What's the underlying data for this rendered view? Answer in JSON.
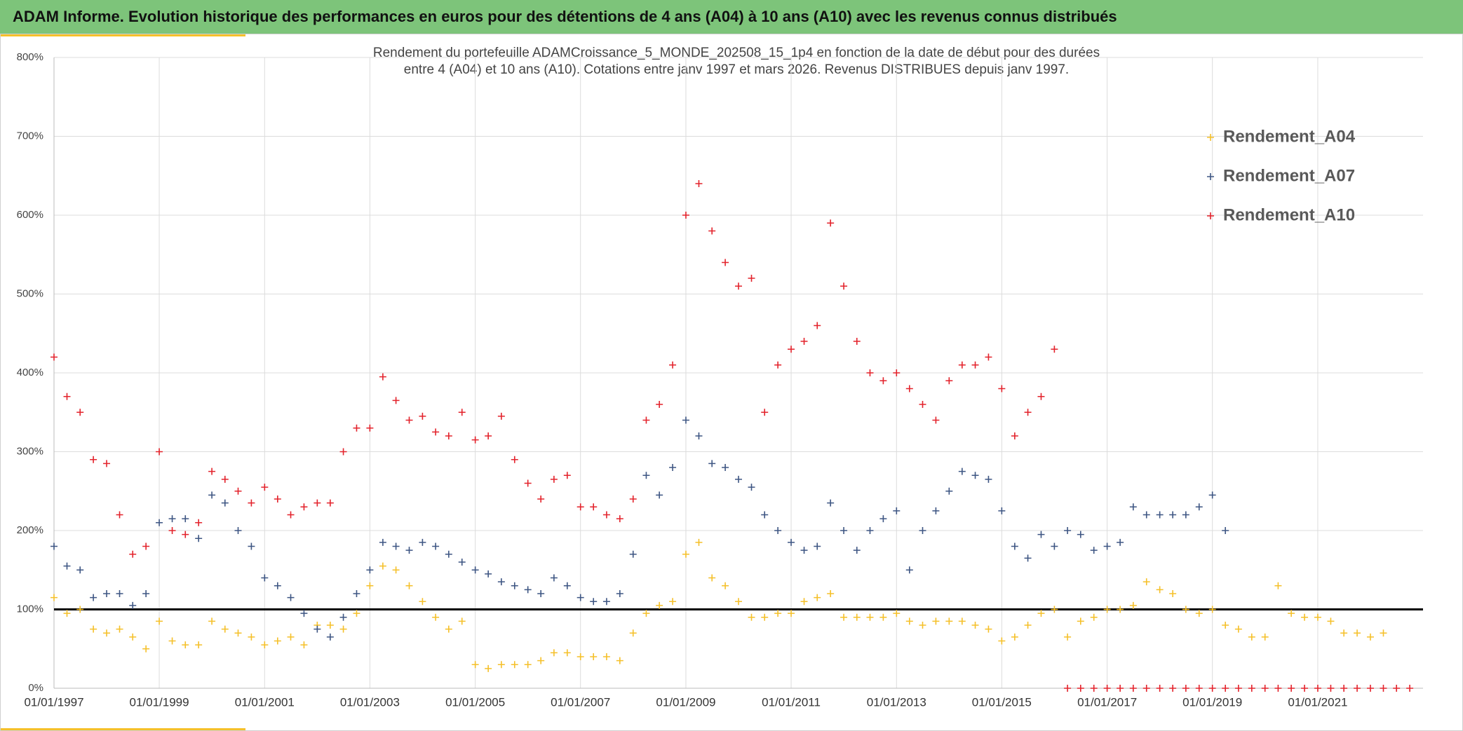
{
  "chart_data": {
    "type": "scatter",
    "title": "ADAM Informe. Evolution historique des performances en euros pour des détentions de 4 ans (A04) à 10 ans (A10) avec les revenus connus distribués",
    "subtitle_lines": [
      "Rendement du portefeuille ADAMCroissance_5_MONDE_202508_15_1p4  en fonction de la date de début pour des durées",
      "entre 4 (A04) et 10 ans (A10). Cotations entre janv 1997 et mars 2026. Revenus DISTRIBUES depuis janv 1997."
    ],
    "x": [
      "1997-01-01",
      "1997-04-01",
      "1997-07-01",
      "1997-10-01",
      "1998-01-01",
      "1998-04-01",
      "1998-07-01",
      "1998-10-01",
      "1999-01-01",
      "1999-04-01",
      "1999-07-01",
      "1999-10-01",
      "2000-01-01",
      "2000-04-01",
      "2000-07-01",
      "2000-10-01",
      "2001-01-01",
      "2001-04-01",
      "2001-07-01",
      "2001-10-01",
      "2002-01-01",
      "2002-04-01",
      "2002-07-01",
      "2002-10-01",
      "2003-01-01",
      "2003-04-01",
      "2003-07-01",
      "2003-10-01",
      "2004-01-01",
      "2004-04-01",
      "2004-07-01",
      "2004-10-01",
      "2005-01-01",
      "2005-04-01",
      "2005-07-01",
      "2005-10-01",
      "2006-01-01",
      "2006-04-01",
      "2006-07-01",
      "2006-10-01",
      "2007-01-01",
      "2007-04-01",
      "2007-07-01",
      "2007-10-01",
      "2008-01-01",
      "2008-04-01",
      "2008-07-01",
      "2008-10-01",
      "2009-01-01",
      "2009-04-01",
      "2009-07-01",
      "2009-10-01",
      "2010-01-01",
      "2010-04-01",
      "2010-07-01",
      "2010-10-01",
      "2011-01-01",
      "2011-04-01",
      "2011-07-01",
      "2011-10-01",
      "2012-01-01",
      "2012-04-01",
      "2012-07-01",
      "2012-10-01",
      "2013-01-01",
      "2013-04-01",
      "2013-07-01",
      "2013-10-01",
      "2014-01-01",
      "2014-04-01",
      "2014-07-01",
      "2014-10-01",
      "2015-01-01",
      "2015-04-01",
      "2015-07-01",
      "2015-10-01",
      "2016-01-01",
      "2016-04-01",
      "2016-07-01",
      "2016-10-01",
      "2017-01-01",
      "2017-04-01",
      "2017-07-01",
      "2017-10-01",
      "2018-01-01",
      "2018-04-01",
      "2018-07-01",
      "2018-10-01",
      "2019-01-01",
      "2019-04-01",
      "2019-07-01",
      "2019-10-01",
      "2020-01-01",
      "2020-04-01",
      "2020-07-01",
      "2020-10-01",
      "2021-01-01",
      "2021-04-01",
      "2021-07-01",
      "2021-10-01",
      "2022-01-01",
      "2022-04-01",
      "2022-07-01",
      "2022-10-01"
    ],
    "series": [
      {
        "name": "Rendement_A04",
        "color": "#f5c02a",
        "values": [
          115,
          95,
          100,
          75,
          70,
          75,
          65,
          50,
          85,
          60,
          55,
          55,
          85,
          75,
          70,
          65,
          55,
          60,
          65,
          55,
          80,
          80,
          75,
          95,
          130,
          155,
          150,
          130,
          110,
          90,
          75,
          85,
          30,
          25,
          30,
          30,
          30,
          35,
          45,
          45,
          40,
          40,
          40,
          35,
          70,
          95,
          105,
          110,
          170,
          185,
          140,
          130,
          110,
          90,
          90,
          95,
          95,
          110,
          115,
          120,
          90,
          90,
          90,
          90,
          95,
          85,
          80,
          85,
          85,
          85,
          80,
          75,
          60,
          65,
          80,
          95,
          100,
          65,
          85,
          90,
          100,
          100,
          105,
          135,
          125,
          120,
          100,
          95,
          100,
          80,
          75,
          65,
          65,
          130,
          95,
          90,
          90,
          85,
          70,
          70,
          65,
          70,
          null,
          null
        ]
      },
      {
        "name": "Rendement_A07",
        "color": "#3e5683",
        "values": [
          180,
          155,
          150,
          115,
          120,
          120,
          105,
          120,
          210,
          215,
          215,
          190,
          245,
          235,
          200,
          180,
          140,
          130,
          115,
          95,
          75,
          65,
          90,
          120,
          150,
          185,
          180,
          175,
          185,
          180,
          170,
          160,
          150,
          145,
          135,
          130,
          125,
          120,
          140,
          130,
          115,
          110,
          110,
          120,
          170,
          270,
          245,
          280,
          340,
          320,
          285,
          280,
          265,
          255,
          220,
          200,
          185,
          175,
          180,
          235,
          200,
          175,
          200,
          215,
          225,
          150,
          200,
          225,
          250,
          275,
          270,
          265,
          225,
          180,
          165,
          195,
          180,
          200,
          195,
          175,
          180,
          185,
          230,
          220,
          220,
          220,
          220,
          230,
          245,
          200,
          null,
          null,
          null,
          null,
          null,
          null,
          null,
          null,
          null,
          null,
          null,
          null,
          null,
          null
        ]
      },
      {
        "name": "Rendement_A10",
        "color": "#e3232c",
        "values": [
          420,
          370,
          350,
          290,
          285,
          220,
          170,
          180,
          300,
          200,
          195,
          210,
          275,
          265,
          250,
          235,
          255,
          240,
          220,
          230,
          235,
          235,
          300,
          330,
          330,
          395,
          365,
          340,
          345,
          325,
          320,
          350,
          315,
          320,
          345,
          290,
          260,
          240,
          265,
          270,
          230,
          230,
          220,
          215,
          240,
          340,
          360,
          410,
          600,
          640,
          580,
          540,
          510,
          520,
          350,
          410,
          430,
          440,
          460,
          590,
          510,
          440,
          400,
          390,
          400,
          380,
          360,
          340,
          390,
          410,
          410,
          420,
          380,
          320,
          350,
          370,
          430,
          0,
          0,
          0,
          0,
          0,
          0,
          0,
          0,
          0,
          0,
          0,
          0,
          0,
          0,
          0,
          0,
          0,
          0,
          0,
          0,
          0,
          0,
          0,
          0,
          0,
          0,
          0
        ]
      }
    ],
    "xlim": [
      "1997-01-01",
      "2023-01-01"
    ],
    "xticks": [
      {
        "value": "1997-01-01",
        "label": "01/01/1997"
      },
      {
        "value": "1999-01-01",
        "label": "01/01/1999"
      },
      {
        "value": "2001-01-01",
        "label": "01/01/2001"
      },
      {
        "value": "2003-01-01",
        "label": "01/01/2003"
      },
      {
        "value": "2005-01-01",
        "label": "01/01/2005"
      },
      {
        "value": "2007-01-01",
        "label": "01/01/2007"
      },
      {
        "value": "2009-01-01",
        "label": "01/01/2009"
      },
      {
        "value": "2011-01-01",
        "label": "01/01/2011"
      },
      {
        "value": "2013-01-01",
        "label": "01/01/2013"
      },
      {
        "value": "2015-01-01",
        "label": "01/01/2015"
      },
      {
        "value": "2017-01-01",
        "label": "01/01/2017"
      },
      {
        "value": "2019-01-01",
        "label": "01/01/2019"
      },
      {
        "value": "2021-01-01",
        "label": "01/01/2021"
      }
    ],
    "ylim": [
      0,
      800
    ],
    "yticks": [
      {
        "value": 0,
        "label": "0%"
      },
      {
        "value": 100,
        "label": "100%"
      },
      {
        "value": 200,
        "label": "200%"
      },
      {
        "value": 300,
        "label": "300%"
      },
      {
        "value": 400,
        "label": "400%"
      },
      {
        "value": 500,
        "label": "500%"
      },
      {
        "value": 600,
        "label": "600%"
      },
      {
        "value": 700,
        "label": "700%"
      },
      {
        "value": 800,
        "label": "800%"
      }
    ],
    "reference_line": 100,
    "grid": true,
    "legend": "upper right"
  }
}
